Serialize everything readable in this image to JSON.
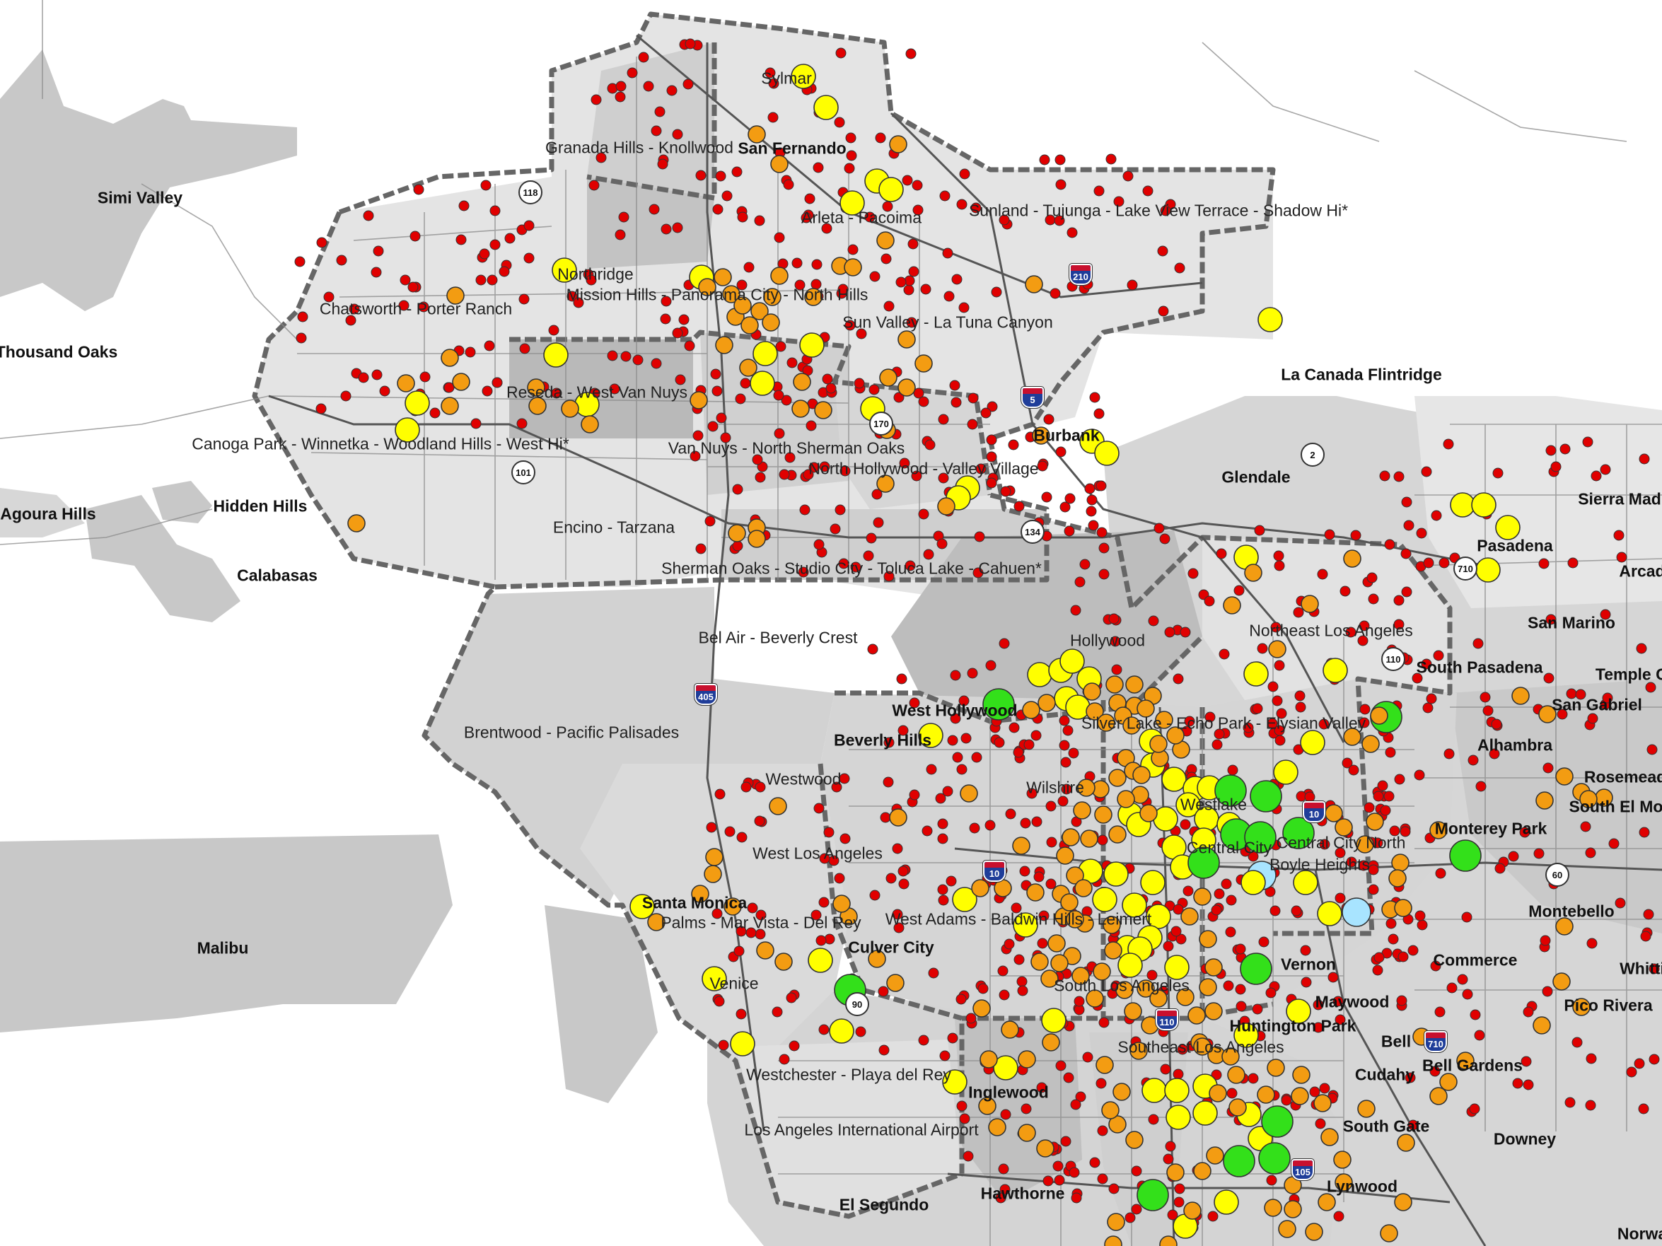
{
  "map": {
    "colors": {
      "background": "#ffffff",
      "outside_gray": "#c8c8c8",
      "la_light": "#e4e4e4",
      "la_medium": "#d2d2d2",
      "la_dark": "#b9b9b9",
      "boundary_dashed": "#666666",
      "marker_red": "#e00000",
      "marker_orange": "#f39c12",
      "marker_yellow": "#ffff00",
      "marker_green": "#33e01a",
      "marker_lightblue": "#a8e4ff"
    },
    "city_labels": [
      {
        "id": "simi-valley",
        "text": "Simi Valley"
      },
      {
        "id": "thousand-oaks",
        "text": "Thousand Oaks"
      },
      {
        "id": "agoura-hills",
        "text": "Agoura Hills"
      },
      {
        "id": "hidden-hills",
        "text": "Hidden Hills"
      },
      {
        "id": "calabasas",
        "text": "Calabasas"
      },
      {
        "id": "malibu",
        "text": "Malibu"
      },
      {
        "id": "san-fernando",
        "text": "San Fernando"
      },
      {
        "id": "burbank",
        "text": "Burbank"
      },
      {
        "id": "glendale",
        "text": "Glendale"
      },
      {
        "id": "la-canada-flintridge",
        "text": "La Canada Flintridge"
      },
      {
        "id": "pasadena",
        "text": "Pasadena"
      },
      {
        "id": "sierra-madre",
        "text": "Sierra Mad"
      },
      {
        "id": "arcadia",
        "text": "Arcad"
      },
      {
        "id": "san-marino",
        "text": "San Marino"
      },
      {
        "id": "south-pasadena",
        "text": "South Pasadena"
      },
      {
        "id": "temple-city",
        "text": "Temple Ci"
      },
      {
        "id": "san-gabriel",
        "text": "San Gabriel"
      },
      {
        "id": "alhambra",
        "text": "Alhambra"
      },
      {
        "id": "rosemead",
        "text": "Rosemead"
      },
      {
        "id": "south-el-monte",
        "text": "South El Mon"
      },
      {
        "id": "monterey-park",
        "text": "Monterey Park"
      },
      {
        "id": "montebello",
        "text": "Montebello"
      },
      {
        "id": "commerce",
        "text": "Commerce"
      },
      {
        "id": "whittier",
        "text": "Whitti"
      },
      {
        "id": "pico-rivera",
        "text": "Pico Rivera"
      },
      {
        "id": "west-hollywood",
        "text": "West Hollywood"
      },
      {
        "id": "beverly-hills",
        "text": "Beverly Hills"
      },
      {
        "id": "santa-monica",
        "text": "Santa Monica"
      },
      {
        "id": "culver-city",
        "text": "Culver City"
      },
      {
        "id": "vernon",
        "text": "Vernon"
      },
      {
        "id": "maywood",
        "text": "Maywood"
      },
      {
        "id": "huntington-park",
        "text": "Huntington Park"
      },
      {
        "id": "bell",
        "text": "Bell"
      },
      {
        "id": "cudahy",
        "text": "Cudahy"
      },
      {
        "id": "bell-gardens",
        "text": "Bell Gardens"
      },
      {
        "id": "south-gate",
        "text": "South Gate"
      },
      {
        "id": "downey",
        "text": "Downey"
      },
      {
        "id": "lynwood",
        "text": "Lynwood"
      },
      {
        "id": "inglewood",
        "text": "Inglewood"
      },
      {
        "id": "hawthorne",
        "text": "Hawthorne"
      },
      {
        "id": "el-segundo",
        "text": "El Segundo"
      },
      {
        "id": "norwalk",
        "text": "Norwa"
      }
    ],
    "area_labels": [
      {
        "id": "sylmar",
        "text": "Sylmar"
      },
      {
        "id": "granada-hills",
        "text": "Granada Hills - Knollwood"
      },
      {
        "id": "arleta-pacoima",
        "text": "Arleta - Pacoima"
      },
      {
        "id": "sunland-tujunga",
        "text": "Sunland - Tujunga - Lake View Terrace - Shadow Hi*"
      },
      {
        "id": "northridge",
        "text": "Northridge"
      },
      {
        "id": "mission-hills",
        "text": "Mission Hills - Panorama City - North Hills"
      },
      {
        "id": "chatsworth",
        "text": "Chatsworth - Porter Ranch"
      },
      {
        "id": "sun-valley",
        "text": "Sun Valley - La Tuna Canyon"
      },
      {
        "id": "reseda",
        "text": "Reseda - West Van Nuys"
      },
      {
        "id": "canoga-park",
        "text": "Canoga Park - Winnetka - Woodland Hills - West Hi*"
      },
      {
        "id": "van-nuys",
        "text": "Van Nuys - North Sherman Oaks"
      },
      {
        "id": "north-hollywood",
        "text": "North Hollywood - Valley Village"
      },
      {
        "id": "encino",
        "text": "Encino - Tarzana"
      },
      {
        "id": "sherman-oaks",
        "text": "Sherman Oaks - Studio City - Toluca Lake - Cahuen*"
      },
      {
        "id": "bel-air",
        "text": "Bel Air - Beverly Crest"
      },
      {
        "id": "hollywood",
        "text": "Hollywood"
      },
      {
        "id": "northeast-la",
        "text": "Northeast Los Angeles"
      },
      {
        "id": "brentwood",
        "text": "Brentwood - Pacific Palisades"
      },
      {
        "id": "silver-lake",
        "text": "Silver Lake - Echo Park - Elysian Valley"
      },
      {
        "id": "westwood",
        "text": "Westwood"
      },
      {
        "id": "wilshire",
        "text": "Wilshire"
      },
      {
        "id": "westlake",
        "text": "Westlake"
      },
      {
        "id": "central-city",
        "text": "Central City"
      },
      {
        "id": "central-city-north",
        "text": "Central City North"
      },
      {
        "id": "boyle-heights",
        "text": "Boyle Heights"
      },
      {
        "id": "west-la",
        "text": "West Los Angeles"
      },
      {
        "id": "palms",
        "text": "Palms - Mar Vista - Del Rey"
      },
      {
        "id": "west-adams",
        "text": "West Adams - Baldwin Hills - Leimert"
      },
      {
        "id": "venice",
        "text": "Venice"
      },
      {
        "id": "south-la",
        "text": "South Los Angeles"
      },
      {
        "id": "southeast-la",
        "text": "Southeast Los Angeles"
      },
      {
        "id": "westchester",
        "text": "Westchester - Playa del Rey"
      },
      {
        "id": "lax",
        "text": "Los Angeles International Airport"
      }
    ],
    "route_shields": [
      {
        "id": "r118",
        "text": "118",
        "kind": "state"
      },
      {
        "id": "r170",
        "text": "170",
        "kind": "state"
      },
      {
        "id": "r101",
        "text": "101",
        "kind": "us"
      },
      {
        "id": "r134",
        "text": "134",
        "kind": "state"
      },
      {
        "id": "r2",
        "text": "2",
        "kind": "state"
      },
      {
        "id": "r710a",
        "text": "710",
        "kind": "state"
      },
      {
        "id": "r110a",
        "text": "110",
        "kind": "state"
      },
      {
        "id": "r60",
        "text": "60",
        "kind": "state"
      },
      {
        "id": "r90",
        "text": "90",
        "kind": "state"
      },
      {
        "id": "i210",
        "text": "210",
        "kind": "interstate"
      },
      {
        "id": "i5",
        "text": "5",
        "kind": "interstate"
      },
      {
        "id": "i405",
        "text": "405",
        "kind": "interstate"
      },
      {
        "id": "i10a",
        "text": "10",
        "kind": "interstate"
      },
      {
        "id": "i10b",
        "text": "10",
        "kind": "interstate"
      },
      {
        "id": "i110",
        "text": "110",
        "kind": "interstate"
      },
      {
        "id": "i710",
        "text": "710",
        "kind": "interstate"
      },
      {
        "id": "i105",
        "text": "105",
        "kind": "interstate"
      }
    ]
  }
}
